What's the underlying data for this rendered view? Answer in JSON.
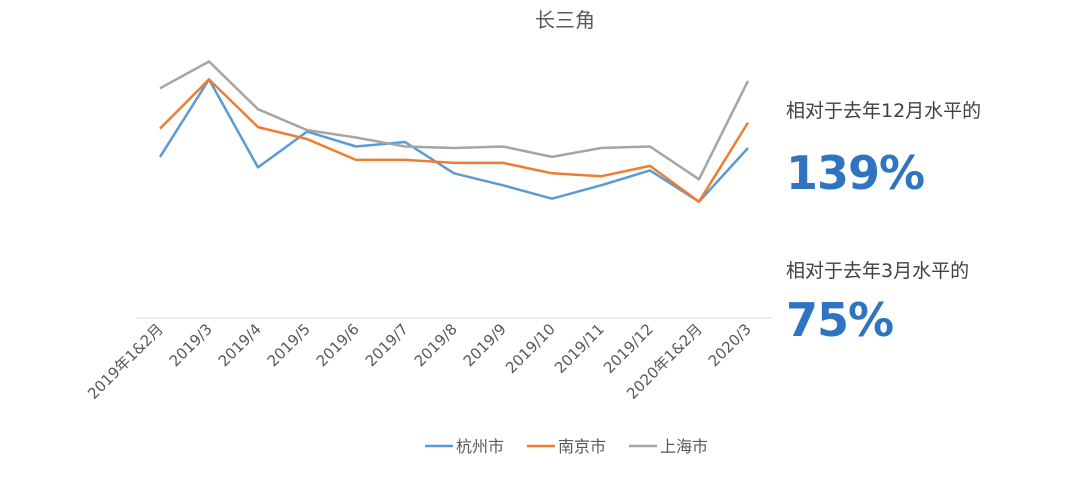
{
  "chart_data": {
    "type": "line",
    "title": "长三角",
    "categories": [
      "2019年1&2月",
      "2019/3",
      "2019/4",
      "2019/5",
      "2019/6",
      "2019/7",
      "2019/8",
      "2019/9",
      "2019/10",
      "2019/11",
      "2019/12",
      "2020年1&2月",
      "2020/3"
    ],
    "series": [
      {
        "name": "杭州市",
        "color": "#5B9BD5",
        "values": [
          108,
          160,
          101,
          125,
          115,
          118,
          97,
          89,
          80,
          89,
          99,
          78,
          114
        ]
      },
      {
        "name": "南京市",
        "color": "#ED7D31",
        "values": [
          127,
          160,
          128,
          120,
          106,
          106,
          104,
          104,
          97,
          95,
          102,
          78,
          131
        ]
      },
      {
        "name": "上海市",
        "color": "#A5A5A5",
        "values": [
          154,
          172,
          140,
          126,
          121,
          115,
          114,
          115,
          108,
          114,
          115,
          93,
          159
        ]
      }
    ],
    "ylim": [
      0,
      173
    ],
    "grid": false,
    "legend": "bottom"
  },
  "annotations": {
    "note1_label": "相对于去年12月水平的",
    "note1_value": "139%",
    "note2_label": "相对于去年3月水平的",
    "note2_value": "75%"
  }
}
